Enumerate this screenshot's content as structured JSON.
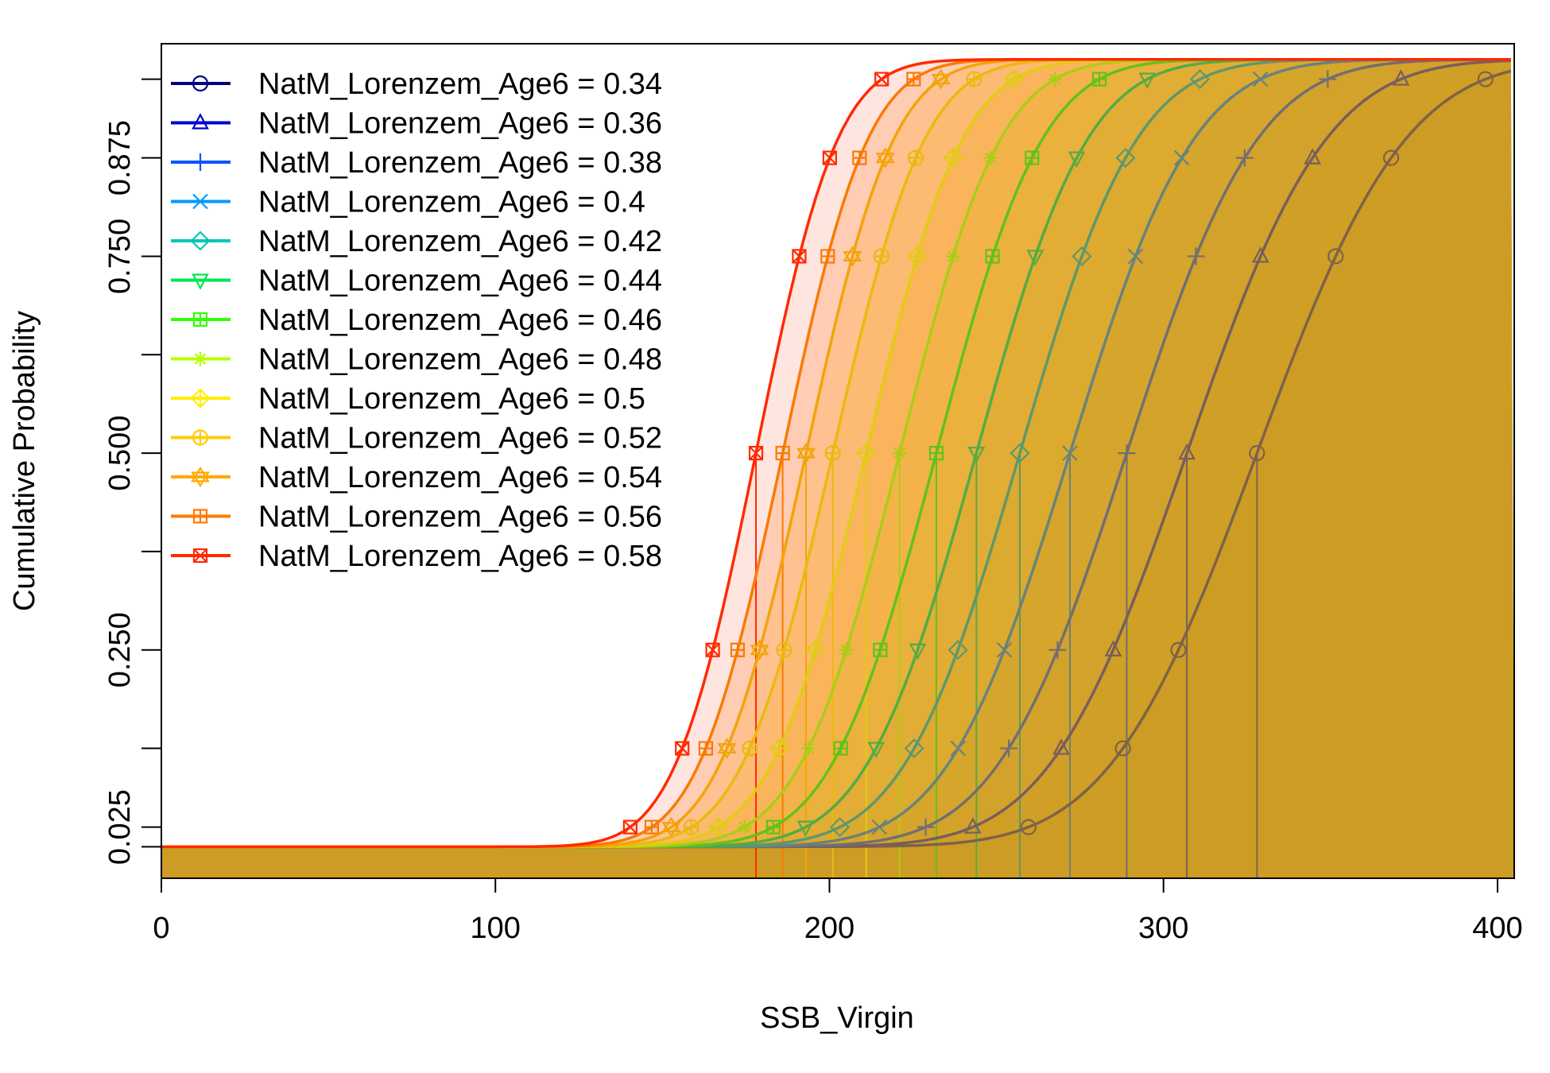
{
  "chart_data": {
    "type": "line",
    "title": "",
    "xlabel": "SSB_Virgin",
    "ylabel": "Cumulative Probability",
    "xlim": [
      0,
      405
    ],
    "ylim": [
      -0.04,
      1.02
    ],
    "x_ticks": [
      0,
      100,
      200,
      300,
      400
    ],
    "x_tick_labels": [
      "0",
      "100",
      "200",
      "300",
      "400"
    ],
    "y_ticks": [
      0,
      0.025,
      0.125,
      0.25,
      0.375,
      0.5,
      0.625,
      0.75,
      0.875,
      0.975
    ],
    "y_tick_labels": [
      "",
      "0.025",
      "",
      "0.250",
      "",
      "0.500",
      "",
      "0.750",
      "0.875",
      ""
    ],
    "marker_probabilities": [
      0.025,
      0.125,
      0.25,
      0.5,
      0.75,
      0.875,
      0.975
    ],
    "legend_position": "top-left",
    "series": [
      {
        "name": "NatM_Lorenzem_Age6 = 0.34",
        "color": "#000080",
        "marker": "circle",
        "median": 328,
        "sd": 34.9,
        "line_alpha": 0.18
      },
      {
        "name": "NatM_Lorenzem_Age6 = 0.36",
        "color": "#0000cd",
        "marker": "triangle",
        "median": 307,
        "sd": 32.7,
        "line_alpha": 0.22
      },
      {
        "name": "NatM_Lorenzem_Age6 = 0.38",
        "color": "#0055ff",
        "marker": "plus",
        "median": 289,
        "sd": 30.7,
        "line_alpha": 0.27
      },
      {
        "name": "NatM_Lorenzem_Age6 = 0.4",
        "color": "#0099ff",
        "marker": "cross",
        "median": 272,
        "sd": 29.1,
        "line_alpha": 0.33
      },
      {
        "name": "NatM_Lorenzem_Age6 = 0.42",
        "color": "#00c8b4",
        "marker": "diamond",
        "median": 257,
        "sd": 27.5,
        "line_alpha": 0.4
      },
      {
        "name": "NatM_Lorenzem_Age6 = 0.44",
        "color": "#00e650",
        "marker": "triangle-down",
        "median": 244,
        "sd": 26.1,
        "line_alpha": 0.47
      },
      {
        "name": "NatM_Lorenzem_Age6 = 0.46",
        "color": "#32ff00",
        "marker": "square-plus",
        "median": 232,
        "sd": 24.9,
        "line_alpha": 0.55
      },
      {
        "name": "NatM_Lorenzem_Age6 = 0.48",
        "color": "#b4ff00",
        "marker": "asterisk",
        "median": 221,
        "sd": 23.7,
        "line_alpha": 0.63
      },
      {
        "name": "NatM_Lorenzem_Age6 = 0.5",
        "color": "#ffee00",
        "marker": "diamond-plus",
        "median": 211,
        "sd": 22.6,
        "line_alpha": 0.71
      },
      {
        "name": "NatM_Lorenzem_Age6 = 0.52",
        "color": "#ffcc00",
        "marker": "circle-plus",
        "median": 201,
        "sd": 21.6,
        "line_alpha": 0.79
      },
      {
        "name": "NatM_Lorenzem_Age6 = 0.54",
        "color": "#ffaa00",
        "marker": "star-of-david",
        "median": 193,
        "sd": 20.6,
        "line_alpha": 0.87
      },
      {
        "name": "NatM_Lorenzem_Age6 = 0.56",
        "color": "#ff7a00",
        "marker": "square-plus",
        "median": 186,
        "sd": 20.0,
        "line_alpha": 0.94
      },
      {
        "name": "NatM_Lorenzem_Age6 = 0.58",
        "color": "#ff2a00",
        "marker": "square-cross",
        "median": 178,
        "sd": 19.2,
        "line_alpha": 1.0
      }
    ]
  }
}
